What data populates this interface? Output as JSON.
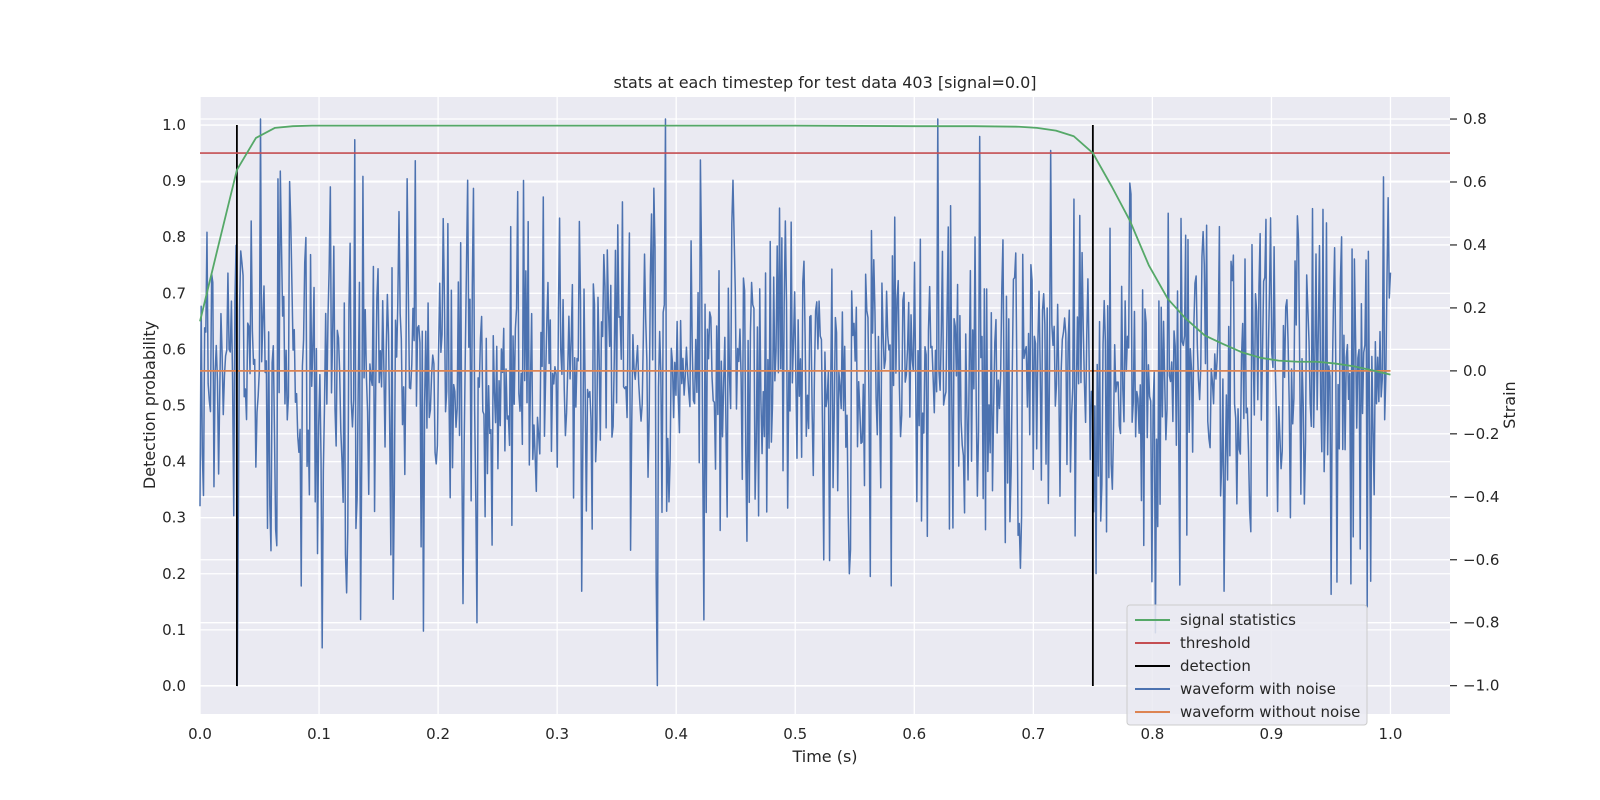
{
  "chart_data": {
    "type": "line",
    "title": "stats at each timestep for test data 403 [signal=0.0]",
    "xlabel": "Time (s)",
    "ylabel": "Detection probability",
    "ylabel_right": "Strain",
    "xlim": [
      0.0,
      1.05
    ],
    "ylim": [
      -0.05,
      1.05
    ],
    "ylim_right": [
      -1.09,
      0.87
    ],
    "grid": true,
    "legend_position": "lower-right",
    "x_ticks": [
      0.0,
      0.1,
      0.2,
      0.3,
      0.4,
      0.5,
      0.6,
      0.7,
      0.8,
      0.9,
      1.0
    ],
    "x_tick_labels": [
      "0.0",
      "0.1",
      "0.2",
      "0.3",
      "0.4",
      "0.5",
      "0.6",
      "0.7",
      "0.8",
      "0.9",
      "1.0"
    ],
    "y_ticks": [
      0.0,
      0.1,
      0.2,
      0.3,
      0.4,
      0.5,
      0.6,
      0.7,
      0.8,
      0.9,
      1.0
    ],
    "y_tick_labels": [
      "0.0",
      "0.1",
      "0.2",
      "0.3",
      "0.4",
      "0.5",
      "0.6",
      "0.7",
      "0.8",
      "0.9",
      "1.0"
    ],
    "y_right_ticks": [
      -1.0,
      -0.8,
      -0.6,
      -0.4,
      -0.2,
      0.0,
      0.2,
      0.4,
      0.6,
      0.8
    ],
    "y_right_tick_labels": [
      "−1.0",
      "−0.8",
      "−0.6",
      "−0.4",
      "−0.2",
      "0.0",
      "0.2",
      "0.4",
      "0.6",
      "0.8"
    ],
    "series": [
      {
        "name": "signal statistics",
        "axis": "left",
        "color": "#55a868",
        "x": [
          0.0,
          0.016,
          0.031,
          0.047,
          0.063,
          0.078,
          0.094,
          0.109,
          0.125,
          0.2,
          0.3,
          0.4,
          0.5,
          0.6,
          0.65,
          0.688,
          0.703,
          0.719,
          0.734,
          0.75,
          0.766,
          0.781,
          0.797,
          0.813,
          0.828,
          0.844,
          0.859,
          0.875,
          0.891,
          0.906,
          0.922,
          0.938,
          0.953,
          0.969,
          0.984,
          1.0
        ],
        "y": [
          0.65,
          0.79,
          0.92,
          0.977,
          0.995,
          0.998,
          0.999,
          0.999,
          0.999,
          0.999,
          0.999,
          0.999,
          0.999,
          0.998,
          0.998,
          0.997,
          0.995,
          0.99,
          0.98,
          0.95,
          0.89,
          0.83,
          0.75,
          0.69,
          0.655,
          0.625,
          0.61,
          0.595,
          0.585,
          0.58,
          0.578,
          0.578,
          0.575,
          0.57,
          0.563,
          0.555
        ]
      },
      {
        "name": "threshold",
        "axis": "left",
        "color": "#c44e52",
        "x": [
          0.0,
          1.05
        ],
        "y": [
          0.95,
          0.95
        ]
      },
      {
        "name": "detection",
        "axis": "left",
        "color": "#000000",
        "segments": [
          {
            "x": [
              0.031,
              0.031
            ],
            "y": [
              0.0,
              1.0
            ]
          },
          {
            "x": [
              0.75,
              0.75
            ],
            "y": [
              0.0,
              1.0
            ]
          }
        ]
      },
      {
        "name": "waveform with noise",
        "axis": "right",
        "color": "#4c72b0",
        "generated_noise": {
          "n": 1024,
          "x_start": 0.0,
          "x_end": 1.0,
          "std": 0.27,
          "min": -1.0,
          "max": 0.8,
          "seed": 403
        },
        "marked_points": [
          {
            "x": 0.0,
            "y": -0.43
          },
          {
            "x": 0.103,
            "y": -0.88
          },
          {
            "x": 0.135,
            "y": -0.79
          },
          {
            "x": 0.233,
            "y": -0.8
          },
          {
            "x": 0.321,
            "y": -0.7
          },
          {
            "x": 0.384,
            "y": -1.0
          },
          {
            "x": 0.42,
            "y": 0.67
          },
          {
            "x": 0.62,
            "y": 0.8
          },
          {
            "x": 0.715,
            "y": 0.7
          },
          {
            "x": 0.8,
            "y": -0.67
          },
          {
            "x": 0.86,
            "y": -0.7
          },
          {
            "x": 0.95,
            "y": -0.71
          },
          {
            "x": 0.98,
            "y": -0.75
          },
          {
            "x": 0.998,
            "y": 0.55
          }
        ]
      },
      {
        "name": "waveform without noise",
        "axis": "right",
        "color": "#dd8452",
        "x": [
          0.0,
          1.0
        ],
        "y": [
          0.0,
          0.0
        ]
      }
    ],
    "legend": [
      {
        "label": "signal statistics",
        "color": "#55a868"
      },
      {
        "label": "threshold",
        "color": "#c44e52"
      },
      {
        "label": "detection",
        "color": "#000000"
      },
      {
        "label": "waveform with noise",
        "color": "#4c72b0"
      },
      {
        "label": "waveform without noise",
        "color": "#dd8452"
      }
    ],
    "colors": {
      "plot_background": "#eaeaf2",
      "grid": "#ffffff",
      "text": "#262626"
    }
  }
}
